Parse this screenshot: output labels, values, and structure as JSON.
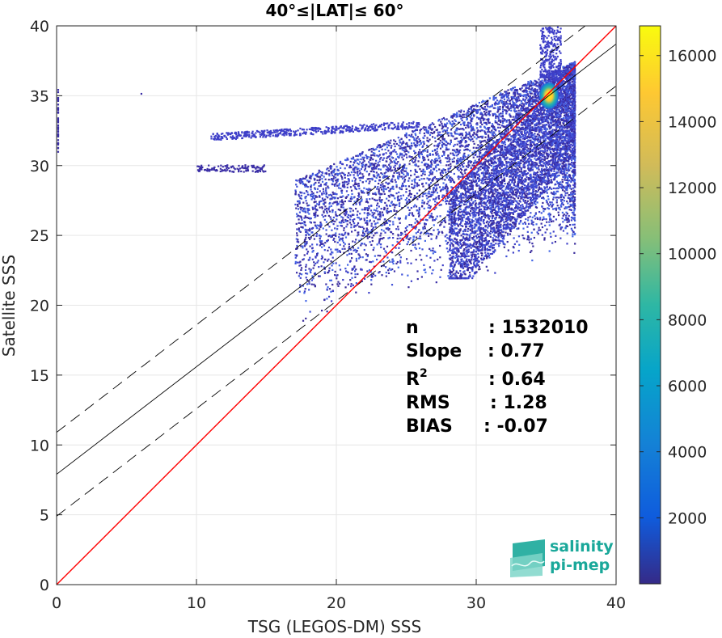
{
  "chart_data": {
    "type": "heatmap",
    "title": "40°≤|LAT|≤ 60°",
    "xlabel": "TSG (LEGOS-DM) SSS",
    "ylabel": "Satellite SSS",
    "xlim": [
      0,
      40
    ],
    "ylim": [
      0,
      40
    ],
    "xticks": [
      "0",
      "10",
      "20",
      "30",
      "40"
    ],
    "yticks": [
      "0",
      "5",
      "10",
      "15",
      "20",
      "25",
      "30",
      "35",
      "40"
    ],
    "grid": true,
    "colorbar": {
      "ticks": [
        "2000",
        "4000",
        "6000",
        "8000",
        "10000",
        "12000",
        "14000",
        "16000"
      ],
      "tick_values": [
        2000,
        4000,
        6000,
        8000,
        10000,
        12000,
        14000,
        16000
      ],
      "range": [
        0,
        16900
      ],
      "colormap": [
        "#352a87",
        "#0f5cdd",
        "#1481d6",
        "#06a4ca",
        "#2eb7a4",
        "#87bf77",
        "#d1bb59",
        "#fec832",
        "#f9fb0e"
      ]
    },
    "lines": {
      "identity": {
        "slope": 1,
        "intercept": 0,
        "color": "#ff0000"
      },
      "regression": {
        "slope": 0.77,
        "intercept": 7.9,
        "color": "#000000"
      },
      "regression_upper": {
        "slope": 0.77,
        "intercept": 10.9,
        "style": "dashed"
      },
      "regression_lower": {
        "slope": 0.77,
        "intercept": 4.9,
        "style": "dashed"
      }
    },
    "density_peak": {
      "x": 35.2,
      "y": 35.0
    },
    "stats": [
      {
        "key": "n",
        "label": "n",
        "value": ": 1532010"
      },
      {
        "key": "slope",
        "label": "Slope",
        "value": ": 0.77"
      },
      {
        "key": "r2",
        "label": "R",
        "sup": "2",
        "value": ": 0.64"
      },
      {
        "key": "rms",
        "label": "RMS",
        "value": ": 1.28"
      },
      {
        "key": "bias",
        "label": "BIAS",
        "value": ": -0.07"
      }
    ]
  },
  "logo": {
    "line1": "salinity",
    "line2": "pi-mep",
    "color": "#1aa89a"
  }
}
